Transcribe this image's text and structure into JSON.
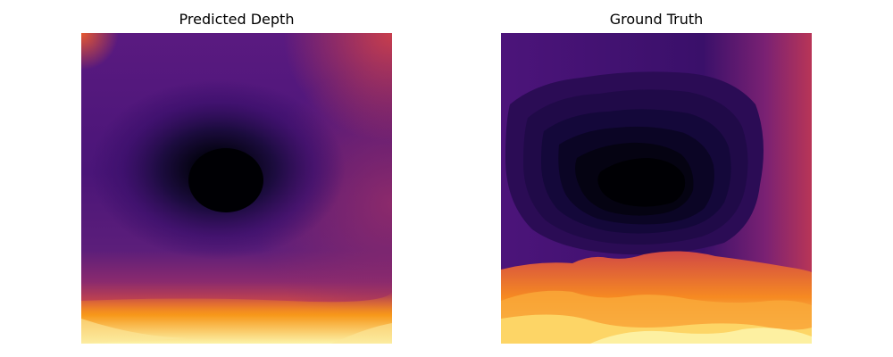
{
  "figure": {
    "panels": [
      {
        "title": "Predicted Depth",
        "colormap": "inferno"
      },
      {
        "title": "Ground Truth",
        "colormap": "inferno"
      }
    ]
  }
}
